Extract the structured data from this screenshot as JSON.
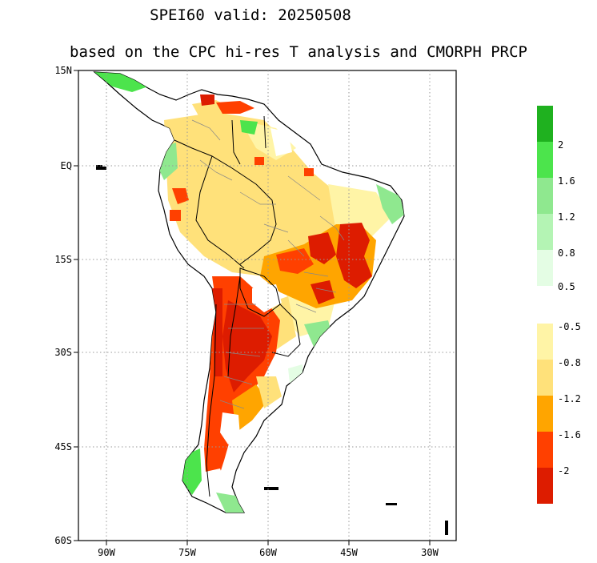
{
  "title": "SPEI60   valid: 20250508",
  "subtitle": "based on the CPC hi-res T analysis and CMORPH PRCP",
  "lat_labels": [
    "15N",
    "EQ",
    "15S",
    "30S",
    "45S",
    "60S"
  ],
  "lon_labels": [
    "90W",
    "75W",
    "60W",
    "45W",
    "30W"
  ],
  "legend_wet": {
    "colors": [
      "#1fb11f",
      "#4ce44c",
      "#8fe88f",
      "#b4f4b4",
      "#e4fde4"
    ],
    "labels": [
      "2",
      "1.6",
      "1.2",
      "0.8",
      "0.5"
    ]
  },
  "legend_dry": {
    "colors": [
      "#fff4a6",
      "#ffe17a",
      "#ffa500",
      "#ff4000",
      "#dd1c00"
    ],
    "labels": [
      "-0.5",
      "-0.8",
      "-1.2",
      "-1.6",
      "-2"
    ]
  }
}
